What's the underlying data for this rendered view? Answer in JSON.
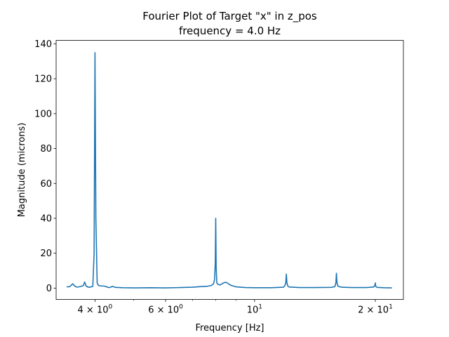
{
  "chart_data": {
    "type": "line",
    "title": "Fourier Plot of Target \"x\" in z_pos",
    "subtitle": "frequency = 4.0 Hz",
    "xlabel": "Frequency [Hz]",
    "ylabel": "Magnitude (microns)",
    "x_scale": "log",
    "xlim": [
      3.2,
      23.5
    ],
    "ylim": [
      -6.5,
      142
    ],
    "grid": false,
    "legend": "none",
    "line_color": "#1f77b4",
    "y_ticks": [
      {
        "value": 0,
        "label": "0"
      },
      {
        "value": 20,
        "label": "20"
      },
      {
        "value": 40,
        "label": "40"
      },
      {
        "value": 60,
        "label": "60"
      },
      {
        "value": 80,
        "label": "80"
      },
      {
        "value": 100,
        "label": "100"
      },
      {
        "value": 120,
        "label": "120"
      },
      {
        "value": 140,
        "label": "140"
      }
    ],
    "x_major_ticks": [
      {
        "value": 4,
        "base": "4 × 10",
        "exp": "0"
      },
      {
        "value": 6,
        "base": "6 × 10",
        "exp": "0"
      },
      {
        "value": 10,
        "base": "10",
        "exp": "1"
      },
      {
        "value": 20,
        "base": "2 × 10",
        "exp": "1"
      }
    ],
    "x_minor_ticks": [
      5,
      7,
      8,
      9
    ],
    "series": [
      {
        "x": [
          3.4,
          3.46,
          3.52,
          3.55,
          3.58,
          3.62,
          3.68,
          3.74,
          3.77,
          3.8,
          3.85,
          3.9,
          3.95,
          3.98,
          4.0,
          4.02,
          4.05,
          4.08,
          4.15,
          4.2,
          4.25,
          4.3,
          4.35,
          4.42,
          4.5,
          4.7,
          5.0,
          5.5,
          6.0,
          6.5,
          7.0,
          7.3,
          7.6,
          7.8,
          7.9,
          7.95,
          7.98,
          8.0,
          8.02,
          8.05,
          8.1,
          8.15,
          8.2,
          8.3,
          8.4,
          8.5,
          8.6,
          8.75,
          9.0,
          9.5,
          10.0,
          11.0,
          11.8,
          11.9,
          11.96,
          12.0,
          12.04,
          12.1,
          12.2,
          13.0,
          14.0,
          15.5,
          15.85,
          15.95,
          16.0,
          16.05,
          16.15,
          16.5,
          17.5,
          19.0,
          19.8,
          19.95,
          20.0,
          20.05,
          20.2,
          21.0,
          22.0
        ],
        "y": [
          0.7,
          0.8,
          2.5,
          1.5,
          0.8,
          0.6,
          0.9,
          1.4,
          3.5,
          1.2,
          0.5,
          0.6,
          1.0,
          20.0,
          135.0,
          40.0,
          3.0,
          1.5,
          1.2,
          1.2,
          1.0,
          0.5,
          0.3,
          1.0,
          0.4,
          0.2,
          0.1,
          0.2,
          0.1,
          0.3,
          0.5,
          0.8,
          1.0,
          1.5,
          2.5,
          5.0,
          15.0,
          40.0,
          12.0,
          3.0,
          2.2,
          2.0,
          1.8,
          2.5,
          3.2,
          3.3,
          2.5,
          1.5,
          0.7,
          0.3,
          0.2,
          0.2,
          0.5,
          1.5,
          3.0,
          8.0,
          3.0,
          1.2,
          0.6,
          0.3,
          0.3,
          0.4,
          0.8,
          3.0,
          8.5,
          3.0,
          1.0,
          0.5,
          0.3,
          0.3,
          0.6,
          1.5,
          3.0,
          1.0,
          0.4,
          0.2,
          0.1
        ]
      }
    ]
  }
}
